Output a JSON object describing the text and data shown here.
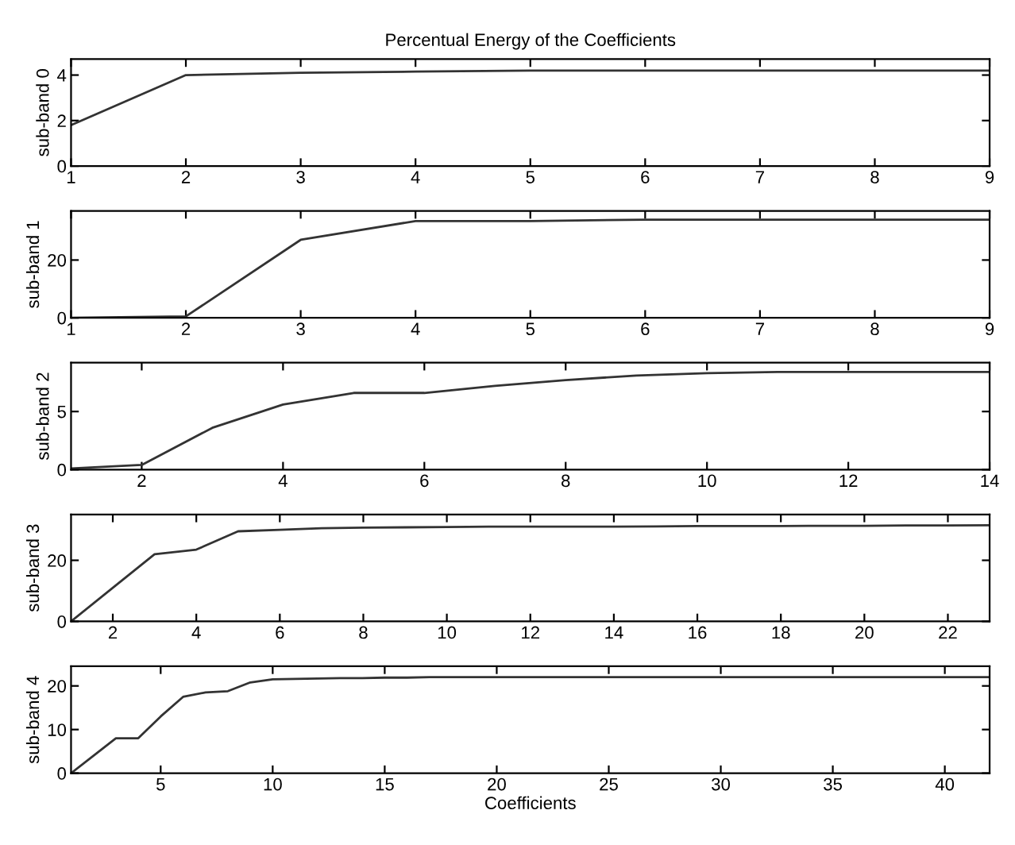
{
  "chart_data": [
    {
      "type": "line",
      "title": "Percentual Energy of the Coefficients",
      "ylabel": "sub-band 0",
      "x": [
        1,
        2,
        3,
        4,
        5,
        6,
        7,
        8,
        9
      ],
      "series": [
        {
          "color": "#333333",
          "values": [
            1.8,
            4.0,
            4.1,
            4.15,
            4.2,
            4.2,
            4.2,
            4.2,
            4.2
          ]
        }
      ],
      "xlim": [
        1,
        9
      ],
      "xticks": [
        1,
        2,
        3,
        4,
        5,
        6,
        7,
        8,
        9
      ],
      "ylim": [
        0,
        4.7
      ],
      "yticks": [
        0,
        2,
        4
      ]
    },
    {
      "type": "line",
      "ylabel": "sub-band 1",
      "x": [
        1,
        2,
        3,
        4,
        5,
        6,
        7,
        8,
        9
      ],
      "series": [
        {
          "color": "#333333",
          "values": [
            0,
            0.5,
            27,
            33.5,
            33.5,
            34,
            34,
            34,
            34
          ]
        }
      ],
      "xlim": [
        1,
        9
      ],
      "xticks": [
        1,
        2,
        3,
        4,
        5,
        6,
        7,
        8,
        9
      ],
      "ylim": [
        0,
        37
      ],
      "yticks": [
        0,
        20
      ]
    },
    {
      "type": "line",
      "ylabel": "sub-band 2",
      "x": [
        1,
        2,
        3,
        4,
        5,
        6,
        7,
        8,
        9,
        10,
        11,
        12,
        13,
        14
      ],
      "series": [
        {
          "color": "#333333",
          "values": [
            0.1,
            0.4,
            3.6,
            5.6,
            6.6,
            6.6,
            7.2,
            7.7,
            8.1,
            8.3,
            8.4,
            8.4,
            8.4,
            8.4
          ]
        }
      ],
      "xlim": [
        1,
        14
      ],
      "xticks": [
        2,
        4,
        6,
        8,
        10,
        12,
        14
      ],
      "ylim": [
        0,
        9.2
      ],
      "yticks": [
        0,
        5
      ]
    },
    {
      "type": "line",
      "ylabel": "sub-band 3",
      "x": [
        1,
        2,
        3,
        4,
        5,
        6,
        7,
        8,
        9,
        10,
        11,
        12,
        13,
        14,
        15,
        16,
        17,
        18,
        19,
        20,
        21,
        22,
        23
      ],
      "series": [
        {
          "color": "#333333",
          "values": [
            0,
            11,
            22,
            23.5,
            29.5,
            30,
            30.5,
            30.7,
            30.8,
            30.9,
            31,
            31,
            31,
            31,
            31.1,
            31.2,
            31.2,
            31.2,
            31.3,
            31.3,
            31.4,
            31.4,
            31.5
          ]
        }
      ],
      "xlim": [
        1,
        23
      ],
      "xticks": [
        2,
        4,
        6,
        8,
        10,
        12,
        14,
        16,
        18,
        20,
        22
      ],
      "ylim": [
        0,
        35
      ],
      "yticks": [
        0,
        20
      ]
    },
    {
      "type": "line",
      "ylabel": "sub-band 4",
      "xlabel": "Coefficients",
      "x": [
        1,
        2,
        3,
        4,
        5,
        6,
        7,
        8,
        9,
        10,
        11,
        12,
        13,
        14,
        15,
        16,
        17,
        18,
        19,
        20,
        21,
        22,
        23,
        24,
        25,
        26,
        27,
        28,
        29,
        30,
        31,
        32,
        33,
        34,
        35,
        36,
        37,
        38,
        39,
        40,
        41,
        42
      ],
      "series": [
        {
          "color": "#333333",
          "values": [
            0,
            4,
            8,
            8,
            13,
            17.5,
            18.5,
            18.8,
            20.8,
            21.5,
            21.6,
            21.7,
            21.8,
            21.8,
            21.9,
            21.9,
            22,
            22,
            22,
            22,
            22,
            22,
            22,
            22,
            22,
            22,
            22,
            22,
            22,
            22,
            22,
            22,
            22,
            22,
            22,
            22,
            22,
            22,
            22,
            22,
            22,
            22
          ]
        }
      ],
      "xlim": [
        1,
        42
      ],
      "xticks": [
        5,
        10,
        15,
        20,
        25,
        30,
        35,
        40
      ],
      "ylim": [
        0,
        24.5
      ],
      "yticks": [
        0,
        10,
        20
      ]
    }
  ]
}
